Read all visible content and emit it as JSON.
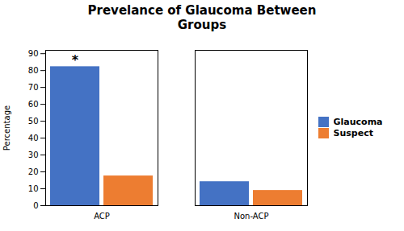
{
  "chart_data": {
    "type": "bar",
    "title": "Prevelance of Glaucoma Between\nGroups",
    "ylabel": "Percentage",
    "categories": [
      "ACP",
      "Non-ACP"
    ],
    "series": [
      {
        "name": "Glaucoma",
        "color": "#4472C4",
        "values": [
          82.3,
          14.2
        ]
      },
      {
        "name": "Suspect",
        "color": "#ED7D31",
        "values": [
          17.6,
          9.0
        ]
      }
    ],
    "ylim": [
      0,
      92
    ],
    "yticks": [
      0,
      10,
      20,
      30,
      40,
      50,
      60,
      70,
      80,
      90
    ],
    "grid": false,
    "legend": "right",
    "annotations": [
      {
        "text": "*",
        "category": "ACP",
        "series": "Glaucoma"
      }
    ]
  }
}
